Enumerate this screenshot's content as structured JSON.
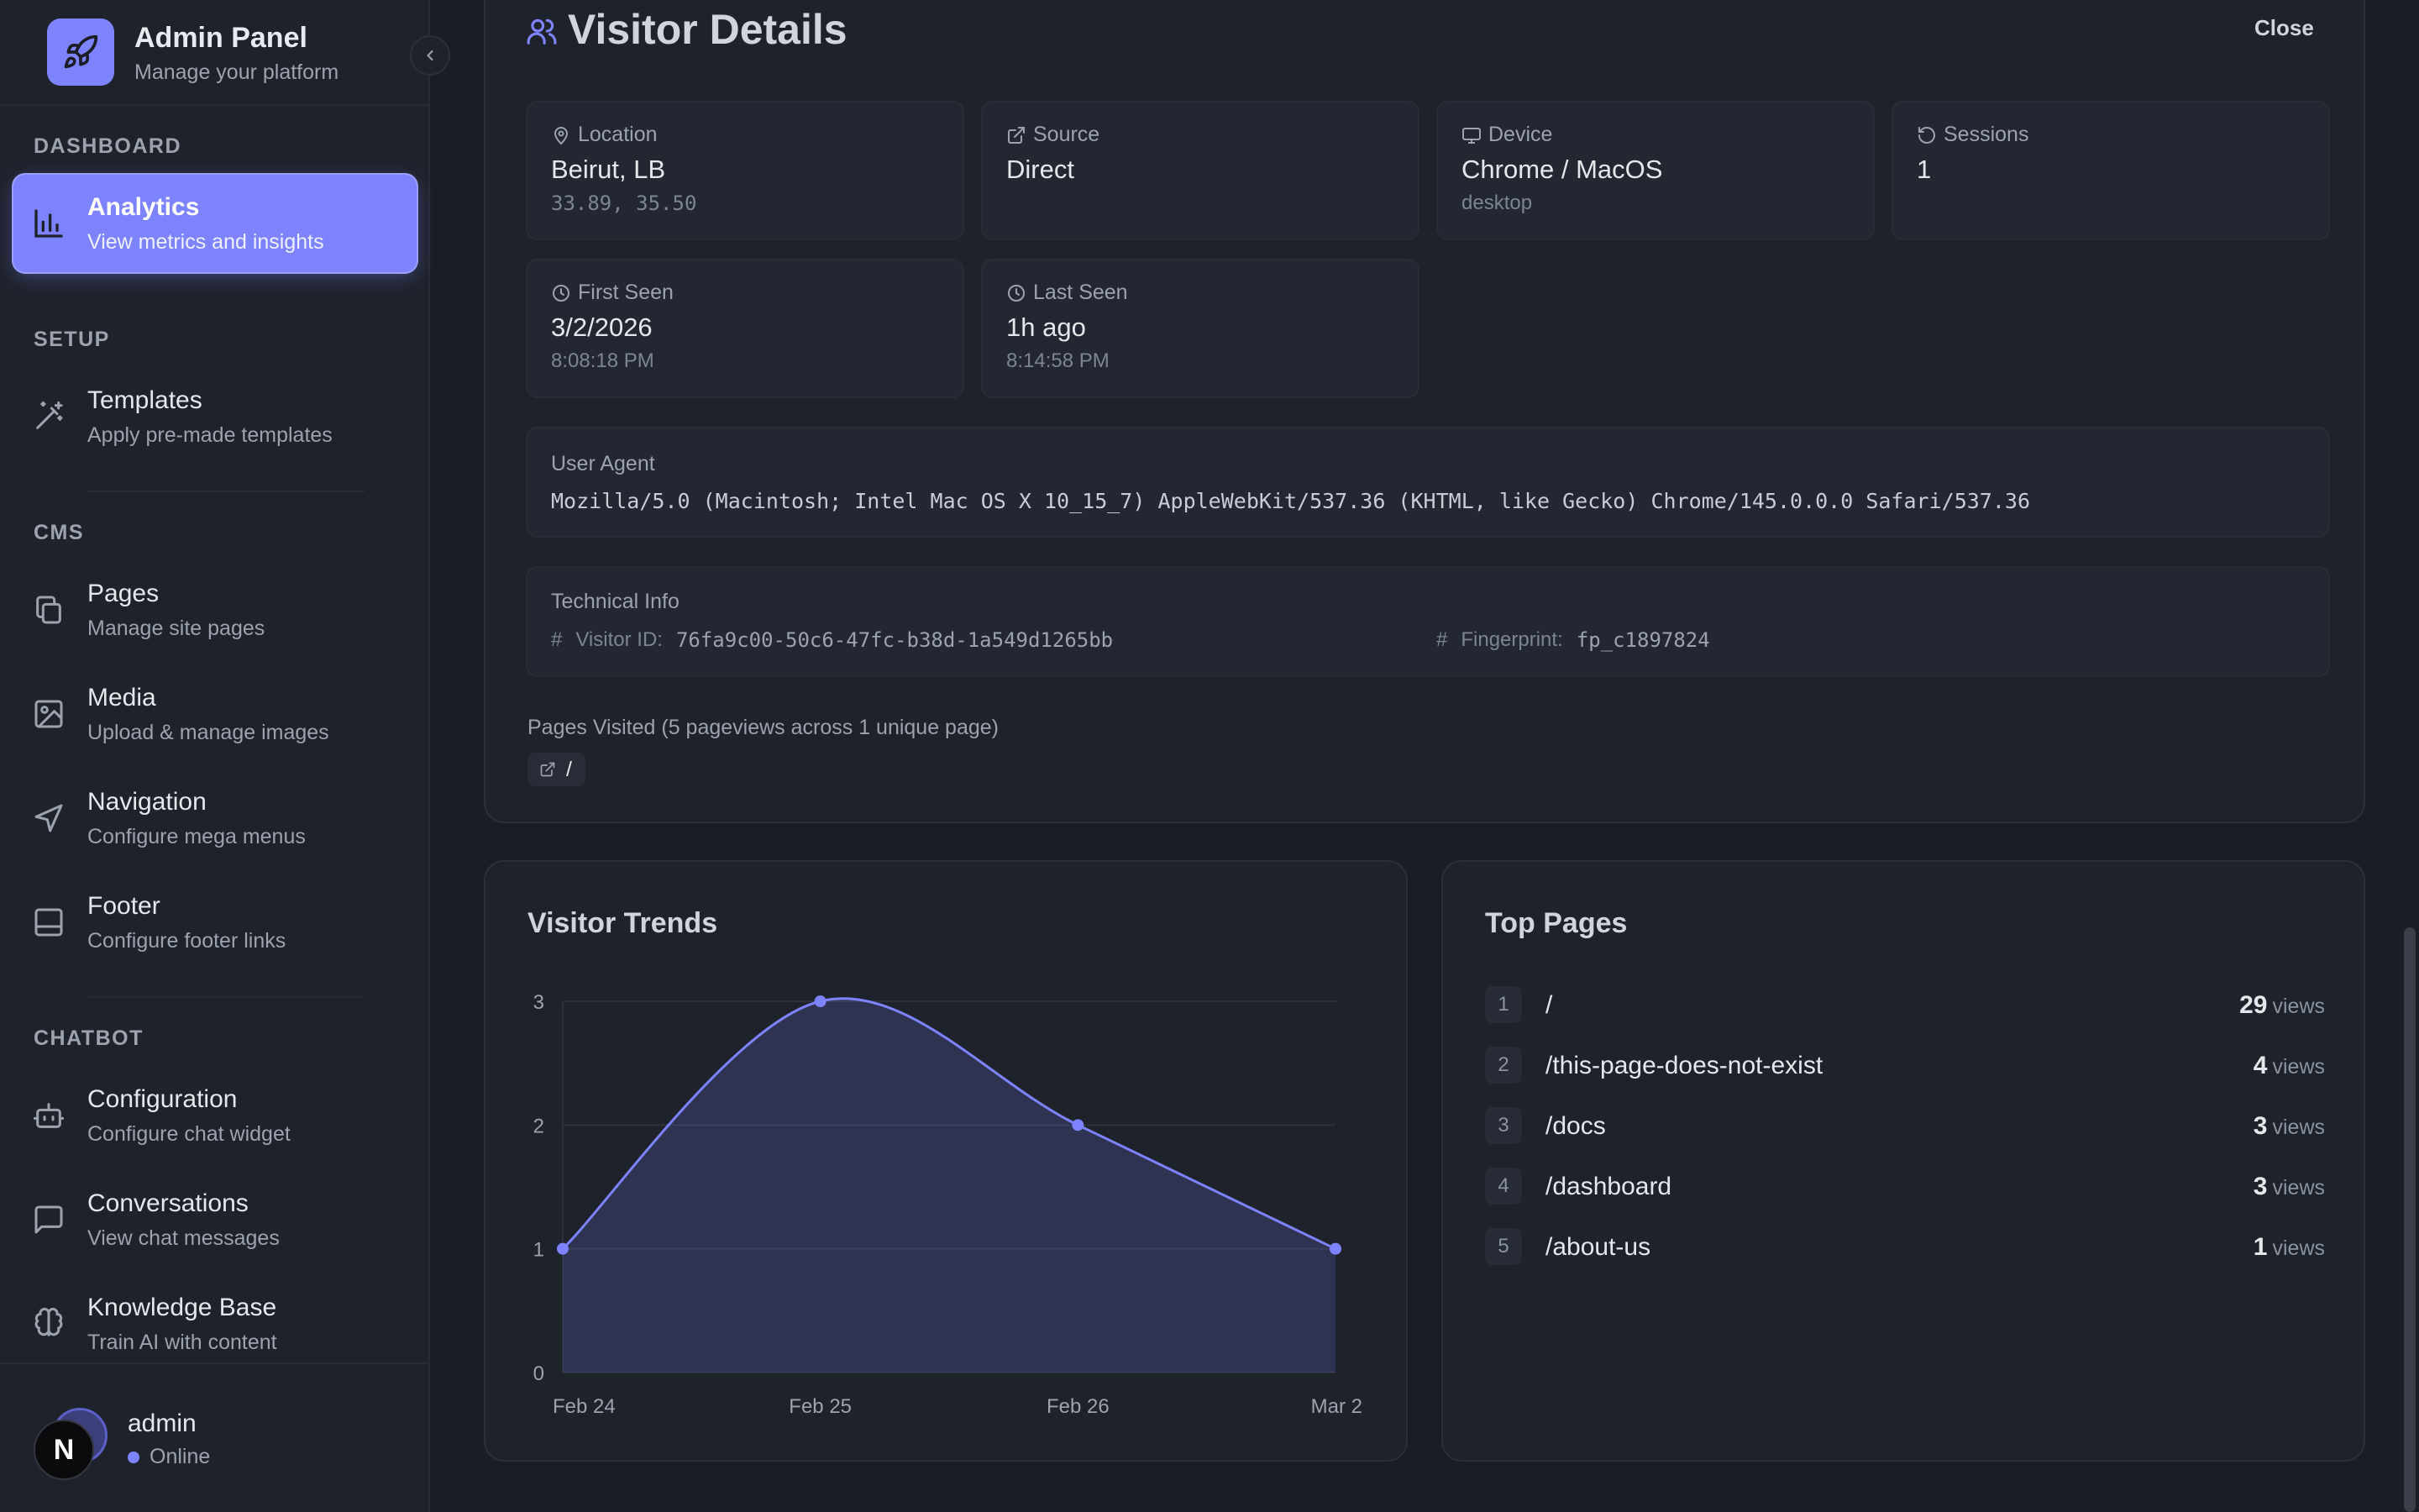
{
  "sidebar": {
    "brand_title": "Admin Panel",
    "brand_subtitle": "Manage your platform",
    "sections": {
      "dashboard": "DASHBOARD",
      "setup": "SETUP",
      "cms": "CMS",
      "chatbot": "CHATBOT"
    },
    "items": {
      "analytics": {
        "title": "Analytics",
        "desc": "View metrics and insights"
      },
      "templates": {
        "title": "Templates",
        "desc": "Apply pre-made templates"
      },
      "pages": {
        "title": "Pages",
        "desc": "Manage site pages"
      },
      "media": {
        "title": "Media",
        "desc": "Upload & manage images"
      },
      "navigation": {
        "title": "Navigation",
        "desc": "Configure mega menus"
      },
      "footer": {
        "title": "Footer",
        "desc": "Configure footer links"
      },
      "configuration": {
        "title": "Configuration",
        "desc": "Configure chat widget"
      },
      "conversations": {
        "title": "Conversations",
        "desc": "View chat messages"
      },
      "knowledge": {
        "title": "Knowledge Base",
        "desc": "Train AI with content"
      }
    },
    "user": {
      "name": "admin",
      "status": "Online",
      "avatar_letter": "N"
    }
  },
  "visitor": {
    "title": "Visitor Details",
    "close_label": "Close",
    "location": {
      "label": "Location",
      "value": "Beirut, LB",
      "sub": "33.89, 35.50"
    },
    "source": {
      "label": "Source",
      "value": "Direct"
    },
    "device": {
      "label": "Device",
      "value": "Chrome / MacOS",
      "sub": "desktop"
    },
    "sessions": {
      "label": "Sessions",
      "value": "1"
    },
    "first_seen": {
      "label": "First Seen",
      "value": "3/2/2026",
      "sub": "8:08:18 PM"
    },
    "last_seen": {
      "label": "Last Seen",
      "value": "1h ago",
      "sub": "8:14:58 PM"
    },
    "user_agent": {
      "label": "User Agent",
      "value": "Mozilla/5.0 (Macintosh; Intel Mac OS X 10_15_7) AppleWebKit/537.36 (KHTML, like Gecko) Chrome/145.0.0.0 Safari/537.36"
    },
    "technical": {
      "label": "Technical Info",
      "visitor_id_label": "Visitor ID:",
      "visitor_id": "76fa9c00-50c6-47fc-b38d-1a549d1265bb",
      "fingerprint_label": "Fingerprint:",
      "fingerprint": "fp_c1897824",
      "hash": "#"
    },
    "pages_visited": "Pages Visited (5 pageviews across 1 unique page)",
    "visited_page": "/"
  },
  "trends": {
    "title": "Visitor Trends"
  },
  "chart_data": {
    "type": "area",
    "title": "Visitor Trends",
    "x": [
      "Feb 24",
      "Feb 25",
      "Feb 26",
      "Mar 2"
    ],
    "series": [
      {
        "values": [
          1,
          3,
          2,
          1
        ]
      }
    ],
    "yticks": [
      "0",
      "1",
      "2",
      "3"
    ],
    "ylim": [
      0,
      3
    ],
    "grid": true,
    "color": "#7c83fd"
  },
  "top_pages": {
    "title": "Top Pages",
    "unit": "views",
    "rows": [
      {
        "rank": "1",
        "path": "/",
        "views": "29"
      },
      {
        "rank": "2",
        "path": "/this-page-does-not-exist",
        "views": "4"
      },
      {
        "rank": "3",
        "path": "/docs",
        "views": "3"
      },
      {
        "rank": "4",
        "path": "/dashboard",
        "views": "3"
      },
      {
        "rank": "5",
        "path": "/about-us",
        "views": "1"
      }
    ]
  },
  "colors": {
    "accent": "#7c83fd",
    "background": "#1a1d24",
    "surface": "#1e222b"
  }
}
